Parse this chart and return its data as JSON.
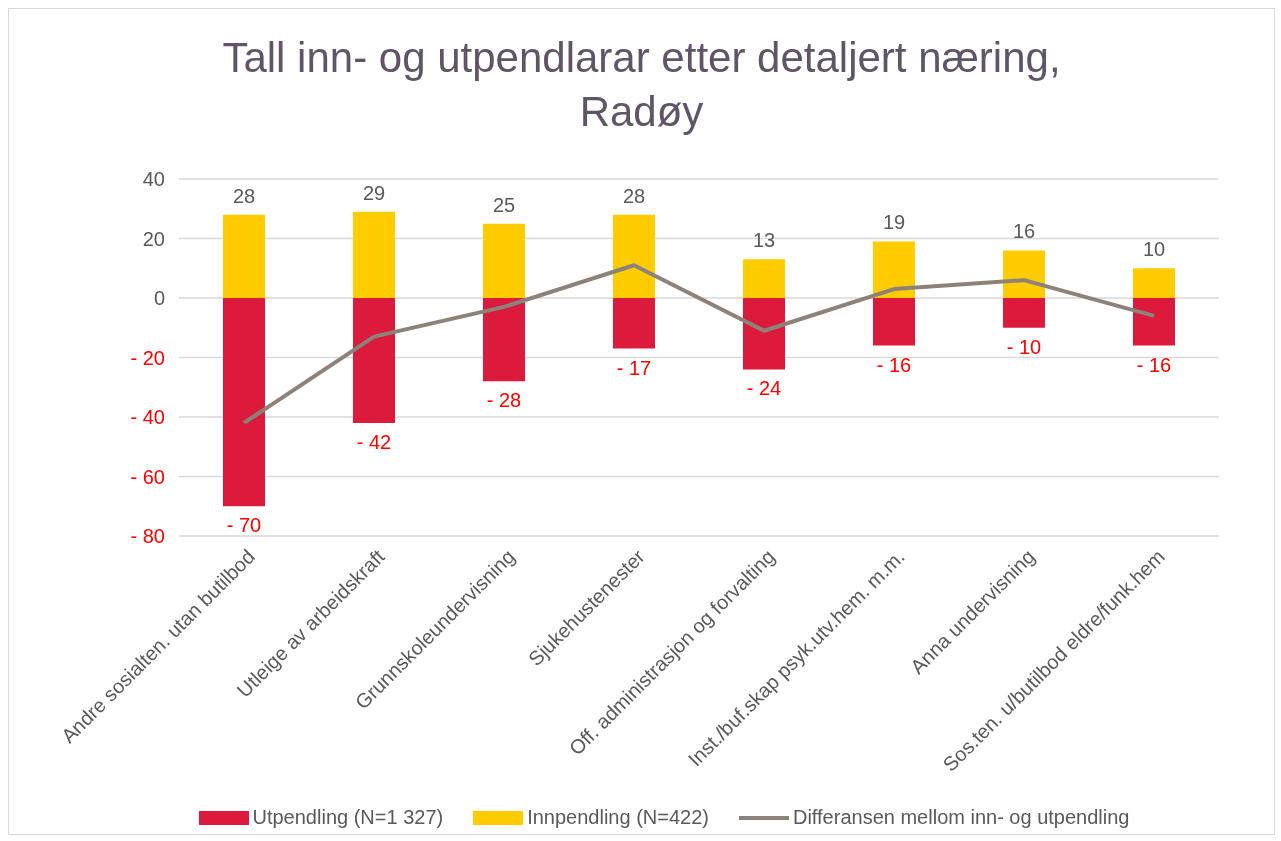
{
  "chart_data": {
    "type": "bar",
    "title": "Tall inn- og utpendlarar etter detaljert næring, Radøy",
    "categories": [
      "Andre sosialten. utan butilbod",
      "Utleige av arbeidskraft",
      "Grunnskoleundervisning",
      "Sjukehustenester",
      "Off. administrasjon og forvalting",
      "Inst./buf.skap psyk.utv.hem. m.m.",
      "Anna undervisning",
      "Sos.ten. u/butilbod eldre/funk.hem"
    ],
    "series": [
      {
        "name": "Utpendling (N=1 327)",
        "color": "#dc1a3c",
        "values": [
          -70,
          -42,
          -28,
          -17,
          -24,
          -16,
          -10,
          -16
        ],
        "value_labels": [
          "- 70",
          "- 42",
          "- 28",
          "- 17",
          "- 24",
          "- 16",
          "- 10",
          "- 16"
        ]
      },
      {
        "name": "Innpendling (N=422)",
        "color": "#ffcc00",
        "values": [
          28,
          29,
          25,
          28,
          13,
          19,
          16,
          10
        ],
        "value_labels": [
          "28",
          "29",
          "25",
          "28",
          "13",
          "19",
          "16",
          "10"
        ]
      },
      {
        "name": "Differansen mellom inn- og utpendling",
        "type": "line",
        "color": "#8c8279",
        "values": [
          -42,
          -13,
          -3,
          11,
          -11,
          3,
          6,
          -6
        ]
      }
    ],
    "stacked": true,
    "ylim": [
      -80,
      40
    ],
    "yticks": [
      {
        "value": -80,
        "label": "- 80"
      },
      {
        "value": -60,
        "label": "- 60"
      },
      {
        "value": -40,
        "label": "- 40"
      },
      {
        "value": -20,
        "label": "- 20"
      },
      0,
      20,
      40
    ],
    "grid": "y",
    "legend": "bottom",
    "marker": "none"
  }
}
